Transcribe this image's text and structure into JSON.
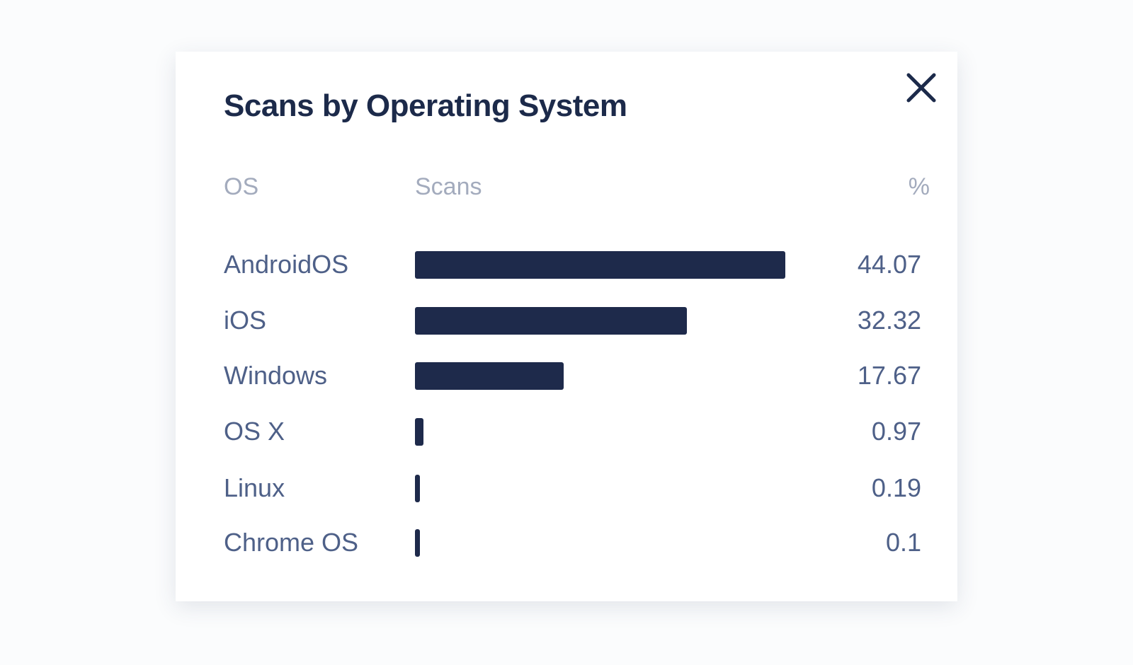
{
  "chart_data": {
    "type": "bar",
    "orientation": "horizontal",
    "title": "Scans by Operating System",
    "columns": {
      "os": "OS",
      "scans": "Scans",
      "pct": "%"
    },
    "categories": [
      "AndroidOS",
      "iOS",
      "Windows",
      "OS X",
      "Linux",
      "Chrome OS"
    ],
    "values": [
      44.07,
      32.32,
      17.67,
      0.97,
      0.19,
      0.1
    ],
    "value_labels": [
      "44.07",
      "32.32",
      "17.67",
      "0.97",
      "0.19",
      "0.1"
    ],
    "bar_color": "#1e2a4b",
    "grid": false
  },
  "close_icon": "close-icon"
}
